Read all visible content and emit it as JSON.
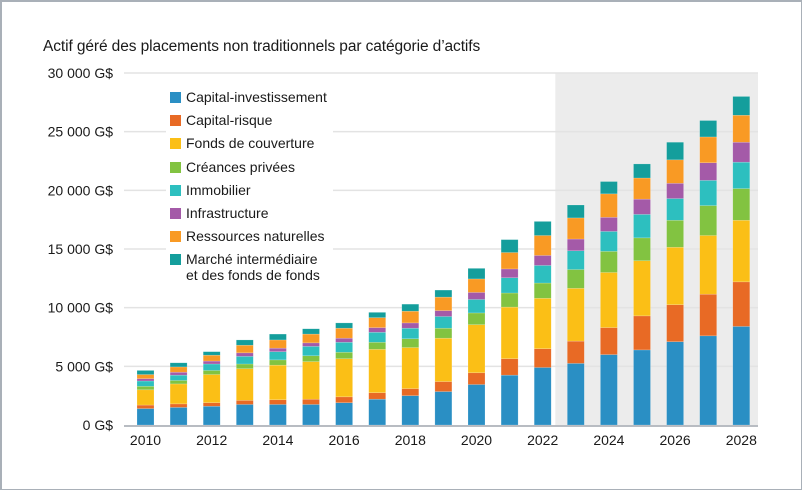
{
  "colors": {
    "background": "#ffffff",
    "forecast_shade": "#ececec",
    "gridline": "#e3e3e3",
    "axis": "#b8bcc2",
    "frame": "#a9b0b8"
  },
  "chart_data": {
    "type": "bar",
    "stacked": true,
    "title": "Actif géré des placements non traditionnels par catégorie d’actifs",
    "xlabel": "",
    "ylabel": "",
    "ylim": [
      0,
      30000
    ],
    "yticks": [
      0,
      5000,
      10000,
      15000,
      20000,
      25000,
      30000
    ],
    "ytick_labels": [
      "0 G$",
      "5 000 G$",
      "10 000 G$",
      "15 000 G$",
      "20 000 G$",
      "25 000 G$",
      "30 000 G$"
    ],
    "grid": true,
    "legend_position": "top-left",
    "forecast_shaded_from": "2023",
    "categories": [
      "2010",
      "2011",
      "2012",
      "2013",
      "2014",
      "2015",
      "2016",
      "2017",
      "2018",
      "2019",
      "2020",
      "2021",
      "2022",
      "2023",
      "2024",
      "2025",
      "2026",
      "2027",
      "2028"
    ],
    "xtick_labels": [
      "2010",
      "2012",
      "2014",
      "2016",
      "2018",
      "2020",
      "2022",
      "2024",
      "2026",
      "2028"
    ],
    "series": [
      {
        "name": "Capital-investissement",
        "color": "#2a8fc4",
        "values": [
          1400,
          1500,
          1600,
          1750,
          1750,
          1750,
          1900,
          2200,
          2500,
          2850,
          3450,
          4250,
          4900,
          5250,
          6000,
          6400,
          7100,
          7600,
          8400
        ]
      },
      {
        "name": "Capital-risque",
        "color": "#e86a25",
        "values": [
          300,
          300,
          300,
          350,
          400,
          450,
          500,
          550,
          600,
          850,
          1000,
          1400,
          1600,
          1900,
          2300,
          2900,
          3150,
          3550,
          3800
        ]
      },
      {
        "name": "Fonds de couverture",
        "color": "#fbbf16",
        "values": [
          1300,
          1700,
          2400,
          2700,
          2950,
          3200,
          3250,
          3700,
          3500,
          3700,
          4100,
          4400,
          4300,
          4500,
          4700,
          4700,
          4900,
          5000,
          5250
        ]
      },
      {
        "name": "Créances privées",
        "color": "#82c341",
        "values": [
          300,
          300,
          350,
          400,
          450,
          500,
          550,
          600,
          750,
          850,
          1000,
          1200,
          1300,
          1600,
          1800,
          1950,
          2300,
          2550,
          2700
        ]
      },
      {
        "name": "Immobilier",
        "color": "#2dbfbf",
        "values": [
          450,
          450,
          550,
          650,
          700,
          800,
          850,
          850,
          900,
          1000,
          1150,
          1300,
          1500,
          1600,
          1700,
          2000,
          1850,
          2150,
          2250
        ]
      },
      {
        "name": "Infrastructure",
        "color": "#a45aa8",
        "values": [
          200,
          250,
          250,
          300,
          300,
          300,
          350,
          400,
          450,
          500,
          600,
          750,
          850,
          1000,
          1200,
          1300,
          1300,
          1500,
          1700
        ]
      },
      {
        "name": "Ressources naturelles",
        "color": "#f99a24",
        "values": [
          350,
          450,
          500,
          650,
          700,
          750,
          850,
          850,
          1000,
          1150,
          1150,
          1400,
          1700,
          1800,
          2000,
          1800,
          2000,
          2200,
          2300
        ]
      },
      {
        "name": "Marché intermédiaire et des fonds de fonds",
        "color": "#149e9c",
        "values": [
          350,
          350,
          300,
          450,
          500,
          450,
          450,
          450,
          600,
          600,
          900,
          1100,
          1200,
          1100,
          1050,
          1200,
          1500,
          1400,
          1600
        ]
      }
    ],
    "legend": [
      {
        "label": "Capital-investissement"
      },
      {
        "label": "Capital-risque"
      },
      {
        "label": "Fonds de couverture"
      },
      {
        "label": "Créances privées"
      },
      {
        "label": "Immobilier"
      },
      {
        "label": "Infrastructure"
      },
      {
        "label": "Ressources naturelles"
      },
      {
        "label": "Marché intermédiaire\net des fonds de fonds"
      }
    ]
  }
}
